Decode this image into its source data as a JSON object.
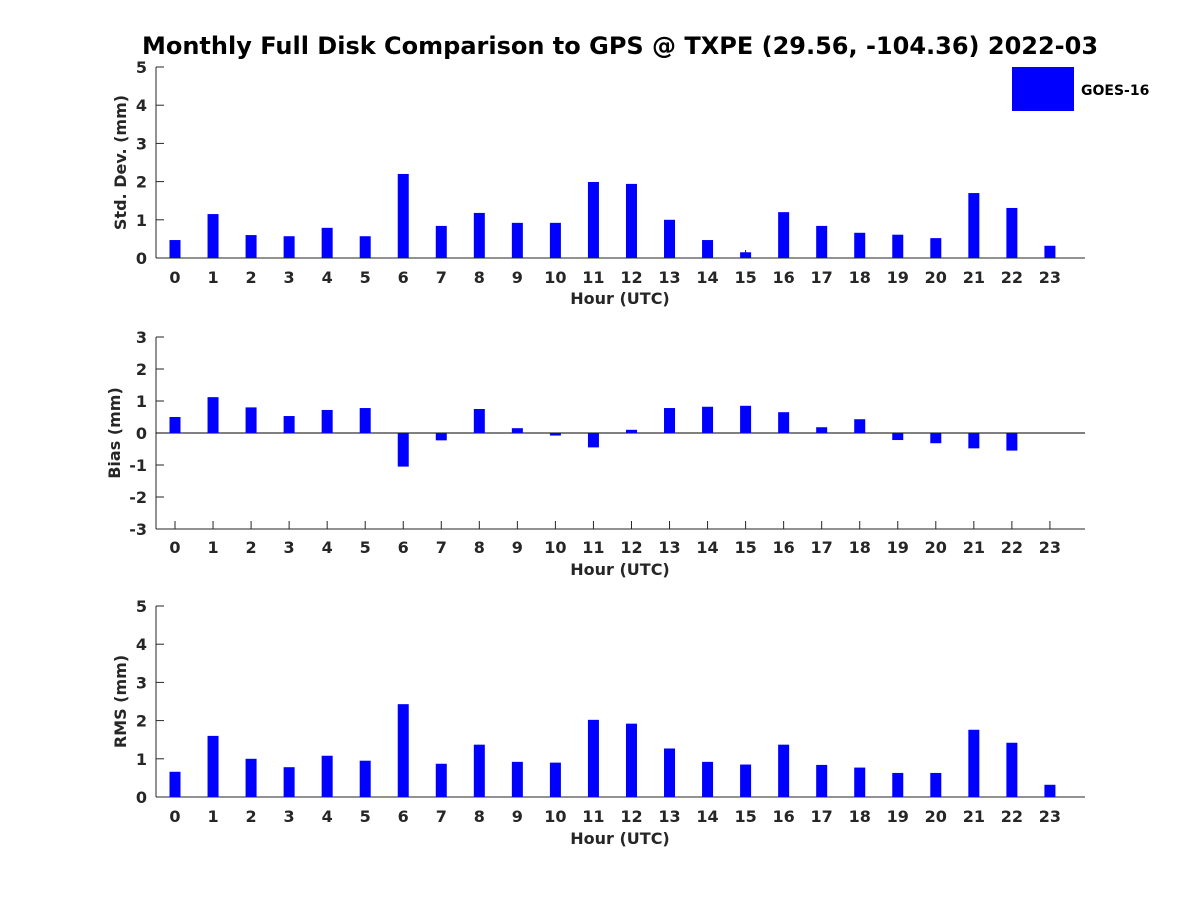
{
  "title": "Monthly Full Disk Comparison to GPS @ TXPE (29.56, -104.36) 2022-03",
  "legend": {
    "label": "GOES-16",
    "color": "#0000ff",
    "placement": "top-right"
  },
  "bar_color": "#0000ff",
  "chart_data": [
    {
      "type": "bar",
      "ylabel": "Std. Dev. (mm)",
      "xlabel": "Hour (UTC)",
      "ylim": [
        0,
        5
      ],
      "yticks": [
        0,
        1,
        2,
        3,
        4,
        5
      ],
      "x": [
        0,
        1,
        2,
        3,
        4,
        5,
        6,
        7,
        8,
        9,
        10,
        11,
        12,
        13,
        14,
        15,
        16,
        17,
        18,
        19,
        20,
        21,
        22,
        23
      ],
      "values": [
        0.47,
        1.15,
        0.6,
        0.57,
        0.79,
        0.57,
        2.2,
        0.84,
        1.18,
        0.92,
        0.92,
        1.99,
        1.94,
        1.0,
        0.47,
        0.15,
        1.2,
        0.84,
        0.66,
        0.61,
        0.52,
        1.7,
        1.31,
        0.32
      ]
    },
    {
      "type": "bar",
      "ylabel": "Bias (mm)",
      "xlabel": "Hour (UTC)",
      "ylim": [
        -3,
        3
      ],
      "yticks": [
        -3,
        -2,
        -1,
        0,
        1,
        2,
        3
      ],
      "x": [
        0,
        1,
        2,
        3,
        4,
        5,
        6,
        7,
        8,
        9,
        10,
        11,
        12,
        13,
        14,
        15,
        16,
        17,
        18,
        19,
        20,
        21,
        22,
        23
      ],
      "values": [
        0.5,
        1.12,
        0.8,
        0.53,
        0.72,
        0.78,
        -1.05,
        -0.23,
        0.75,
        0.15,
        -0.08,
        -0.45,
        0.1,
        0.78,
        0.82,
        0.85,
        0.65,
        0.18,
        0.43,
        -0.22,
        -0.32,
        -0.48,
        -0.55,
        0.0
      ]
    },
    {
      "type": "bar",
      "ylabel": "RMS (mm)",
      "xlabel": "Hour (UTC)",
      "ylim": [
        0,
        5
      ],
      "yticks": [
        0,
        1,
        2,
        3,
        4,
        5
      ],
      "x": [
        0,
        1,
        2,
        3,
        4,
        5,
        6,
        7,
        8,
        9,
        10,
        11,
        12,
        13,
        14,
        15,
        16,
        17,
        18,
        19,
        20,
        21,
        22,
        23
      ],
      "values": [
        0.66,
        1.6,
        1.0,
        0.78,
        1.08,
        0.95,
        2.43,
        0.87,
        1.37,
        0.92,
        0.9,
        2.02,
        1.92,
        1.27,
        0.92,
        0.85,
        1.37,
        0.84,
        0.77,
        0.63,
        0.63,
        1.76,
        1.42,
        0.32
      ]
    }
  ]
}
